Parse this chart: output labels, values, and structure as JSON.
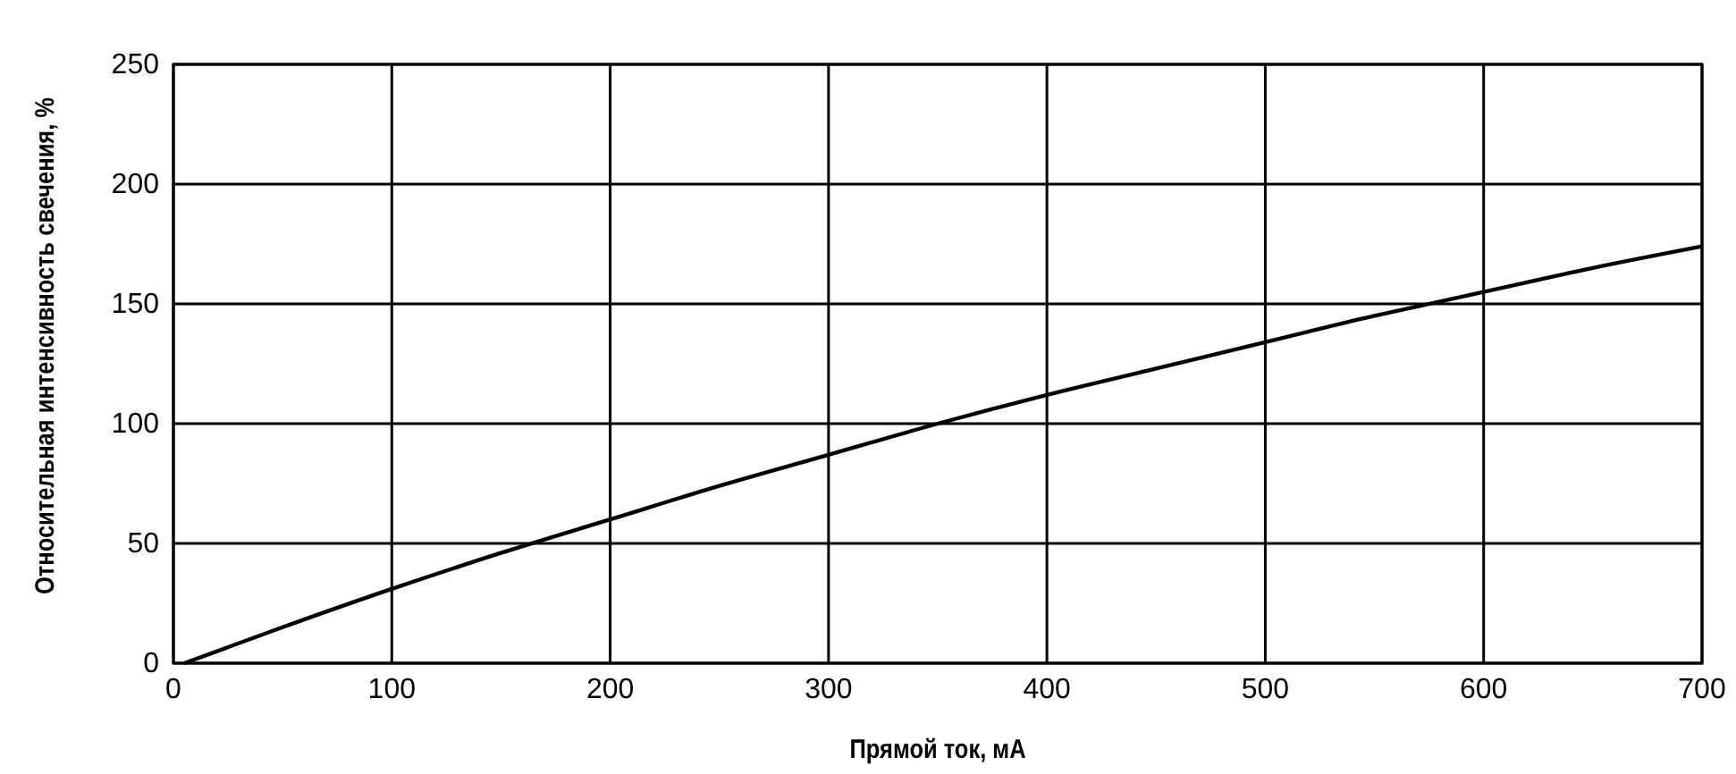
{
  "chart_data": {
    "type": "line",
    "xlabel": "Прямой ток, мА",
    "ylabel": "Относительная интенсивность свечения, %",
    "series": [
      {
        "color": "#000000",
        "x": [
          5,
          50,
          100,
          150,
          200,
          250,
          300,
          350,
          400,
          450,
          500,
          550,
          580,
          600,
          650,
          700
        ],
        "values": [
          0,
          15,
          31,
          46,
          60,
          74,
          87,
          100,
          112,
          123,
          134,
          145,
          151,
          155,
          165,
          174
        ]
      }
    ],
    "xlim": [
      0,
      700
    ],
    "xticks": [
      0,
      100,
      200,
      300,
      400,
      500,
      600,
      700
    ],
    "ylim": [
      0,
      250
    ],
    "yticks": [
      0,
      50,
      100,
      150,
      200,
      250
    ],
    "grid": true,
    "marker": "none",
    "line_style": "solid"
  }
}
